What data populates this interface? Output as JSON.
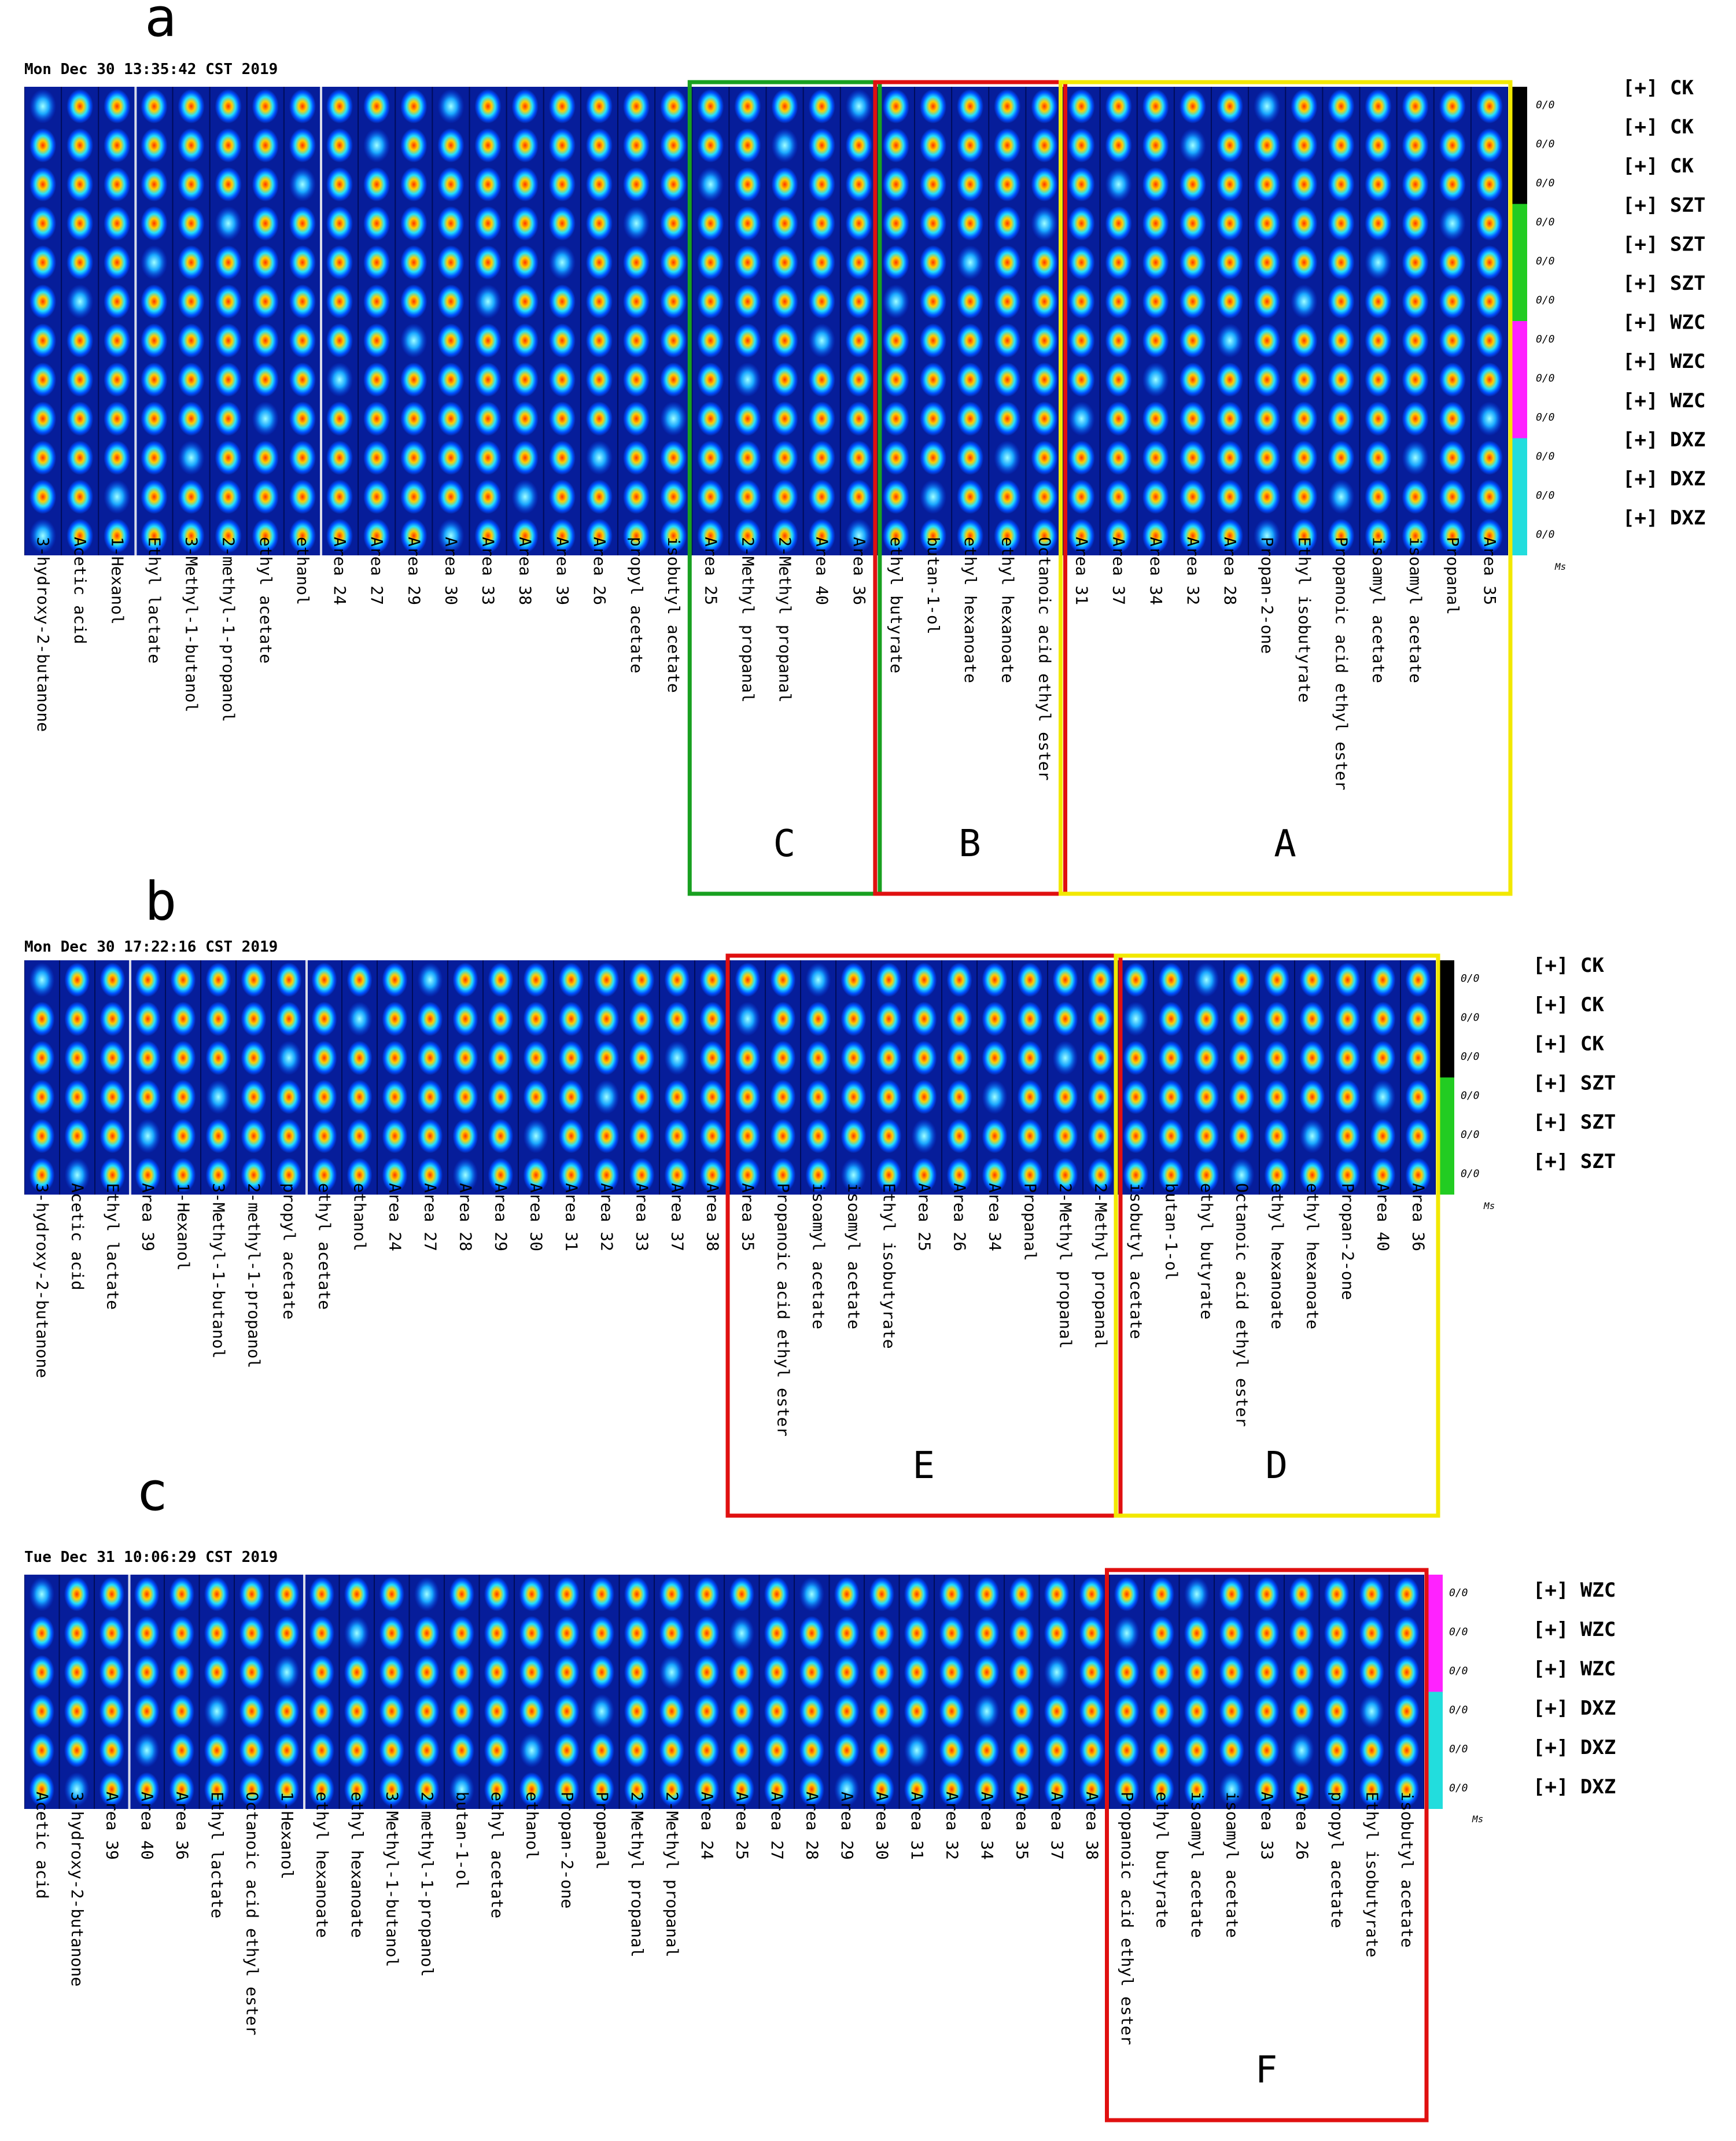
{
  "colors": {
    "CK": "#000000",
    "SZT": "#22cc22",
    "WZC": "#ff22ff",
    "DXZ": "#22dddd",
    "box_yellow": "#f2e800",
    "box_red": "#e01010",
    "box_green": "#18a020"
  },
  "ratio_text": "0/0",
  "ms_label": "Ms",
  "chart_data": [
    {
      "type": "heatmap",
      "panel": "a",
      "timestamp": "Mon Dec 30 13:35:42 CST 2019",
      "rows": [
        "[+] CK",
        "[+] CK",
        "[+] CK",
        "[+] SZT",
        "[+] SZT",
        "[+] SZT",
        "[+] WZC",
        "[+] WZC",
        "[+] WZC",
        "[+] DXZ",
        "[+] DXZ",
        "[+] DXZ"
      ],
      "groups": [
        "CK",
        "CK",
        "CK",
        "SZT",
        "SZT",
        "SZT",
        "WZC",
        "WZC",
        "WZC",
        "DXZ",
        "DXZ",
        "DXZ"
      ],
      "columns": [
        "3-hydroxy-2-butanone",
        "Acetic acid",
        "1-Hexanol",
        "Ethyl lactate",
        "3-Methyl-1-butanol",
        "2-methyl-1-propanol",
        "ethyl acetate",
        "ethanol",
        "Area 24",
        "Area 27",
        "Area 29",
        "Area 30",
        "Area 33",
        "Area 38",
        "Area 39",
        "Area 26",
        "propyl acetate",
        "isobutyl acetate",
        "Area 25",
        "2-Methyl propanal",
        "2-Methyl propanal",
        "Area 40",
        "Area 36",
        "ethyl butyrate",
        "butan-1-ol",
        "ethyl hexanoate",
        "ethyl hexanoate",
        "Octanoic acid ethyl ester",
        "Area 31",
        "Area 37",
        "Area 34",
        "Area 32",
        "Area 28",
        "Propan-2-one",
        "Ethyl isobutyrate",
        "Propanoic acid ethyl ester",
        "isoamyl acetate",
        "isoamyl acetate",
        "Propanal",
        "Area 35"
      ],
      "boxes": [
        {
          "letter": "C",
          "color": "green",
          "columns": [
            "Area 25",
            "2-Methyl propanal",
            "2-Methyl propanal",
            "Area 40",
            "Area 36"
          ]
        },
        {
          "letter": "B",
          "color": "red",
          "columns": [
            "ethyl butyrate",
            "butan-1-ol",
            "ethyl hexanoate",
            "ethyl hexanoate",
            "Octanoic acid ethyl ester"
          ]
        },
        {
          "letter": "A",
          "color": "yellow",
          "columns": [
            "Area 31",
            "Area 37",
            "Area 34",
            "Area 32",
            "Area 28",
            "Propan-2-one",
            "Ethyl isobutyrate",
            "Propanoic acid ethyl ester",
            "isoamyl acetate",
            "isoamyl acetate",
            "Propanal",
            "Area 35"
          ]
        }
      ]
    },
    {
      "type": "heatmap",
      "panel": "b",
      "timestamp": "Mon Dec 30 17:22:16 CST 2019",
      "rows": [
        "[+] CK",
        "[+] CK",
        "[+] CK",
        "[+] SZT",
        "[+] SZT",
        "[+] SZT"
      ],
      "groups": [
        "CK",
        "CK",
        "CK",
        "SZT",
        "SZT",
        "SZT"
      ],
      "columns": [
        "3-hydroxy-2-butanone",
        "Acetic acid",
        "Ethyl lactate",
        "Area 39",
        "1-Hexanol",
        "3-Methyl-1-butanol",
        "2-methyl-1-propanol",
        "propyl acetate",
        "ethyl acetate",
        "ethanol",
        "Area 24",
        "Area 27",
        "Area 28",
        "Area 29",
        "Area 30",
        "Area 31",
        "Area 32",
        "Area 33",
        "Area 37",
        "Area 38",
        "Area 35",
        "Propanoic acid ethyl ester",
        "isoamyl acetate",
        "isoamyl acetate",
        "Ethyl isobutyrate",
        "Area 25",
        "Area 26",
        "Area 34",
        "Propanal",
        "2-Methyl propanal",
        "2-Methyl propanal",
        "isobutyl acetate",
        "butan-1-ol",
        "ethyl butyrate",
        "Octanoic acid ethyl ester",
        "ethyl hexanoate",
        "ethyl hexanoate",
        "Propan-2-one",
        "Area 40",
        "Area 36"
      ],
      "boxes": [
        {
          "letter": "E",
          "color": "red",
          "columns": [
            "Area 35",
            "Propanoic acid ethyl ester",
            "isoamyl acetate",
            "isoamyl acetate",
            "Ethyl isobutyrate",
            "Area 25",
            "Area 26",
            "Area 34",
            "Propanal",
            "2-Methyl propanal",
            "2-Methyl propanal"
          ]
        },
        {
          "letter": "D",
          "color": "yellow",
          "columns": [
            "isobutyl acetate",
            "butan-1-ol",
            "ethyl butyrate",
            "Octanoic acid ethyl ester",
            "ethyl hexanoate",
            "ethyl hexanoate",
            "Propan-2-one",
            "Area 40",
            "Area 36"
          ]
        }
      ]
    },
    {
      "type": "heatmap",
      "panel": "c",
      "timestamp": "Tue Dec 31 10:06:29 CST 2019",
      "rows": [
        "[+] WZC",
        "[+] WZC",
        "[+] WZC",
        "[+] DXZ",
        "[+] DXZ",
        "[+] DXZ"
      ],
      "groups": [
        "WZC",
        "WZC",
        "WZC",
        "DXZ",
        "DXZ",
        "DXZ"
      ],
      "columns": [
        "Acetic acid",
        "3-hydroxy-2-butanone",
        "Area 39",
        "Area 40",
        "Area 36",
        "Ethyl lactate",
        "Octanoic acid ethyl ester",
        "1-Hexanol",
        "ethyl hexanoate",
        "ethyl hexanoate",
        "3-Methyl-1-butanol",
        "2-methyl-1-propanol",
        "butan-1-ol",
        "ethyl acetate",
        "ethanol",
        "Propan-2-one",
        "Propanal",
        "2-Methyl propanal",
        "2-Methyl propanal",
        "Area 24",
        "Area 25",
        "Area 27",
        "Area 28",
        "Area 29",
        "Area 30",
        "Area 31",
        "Area 32",
        "Area 34",
        "Area 35",
        "Area 37",
        "Area 38",
        "Propanoic acid ethyl ester",
        "ethyl butyrate",
        "isoamyl acetate",
        "isoamyl acetate",
        "Area 33",
        "Area 26",
        "propyl acetate",
        "Ethyl isobutyrate",
        "isobutyl acetate"
      ],
      "boxes": [
        {
          "letter": "F",
          "color": "red",
          "columns": [
            "Propanoic acid ethyl ester",
            "ethyl butyrate",
            "isoamyl acetate",
            "isoamyl acetate",
            "Area 33",
            "Area 26",
            "propyl acetate",
            "Ethyl isobutyrate",
            "isobutyl acetate"
          ]
        }
      ]
    }
  ]
}
